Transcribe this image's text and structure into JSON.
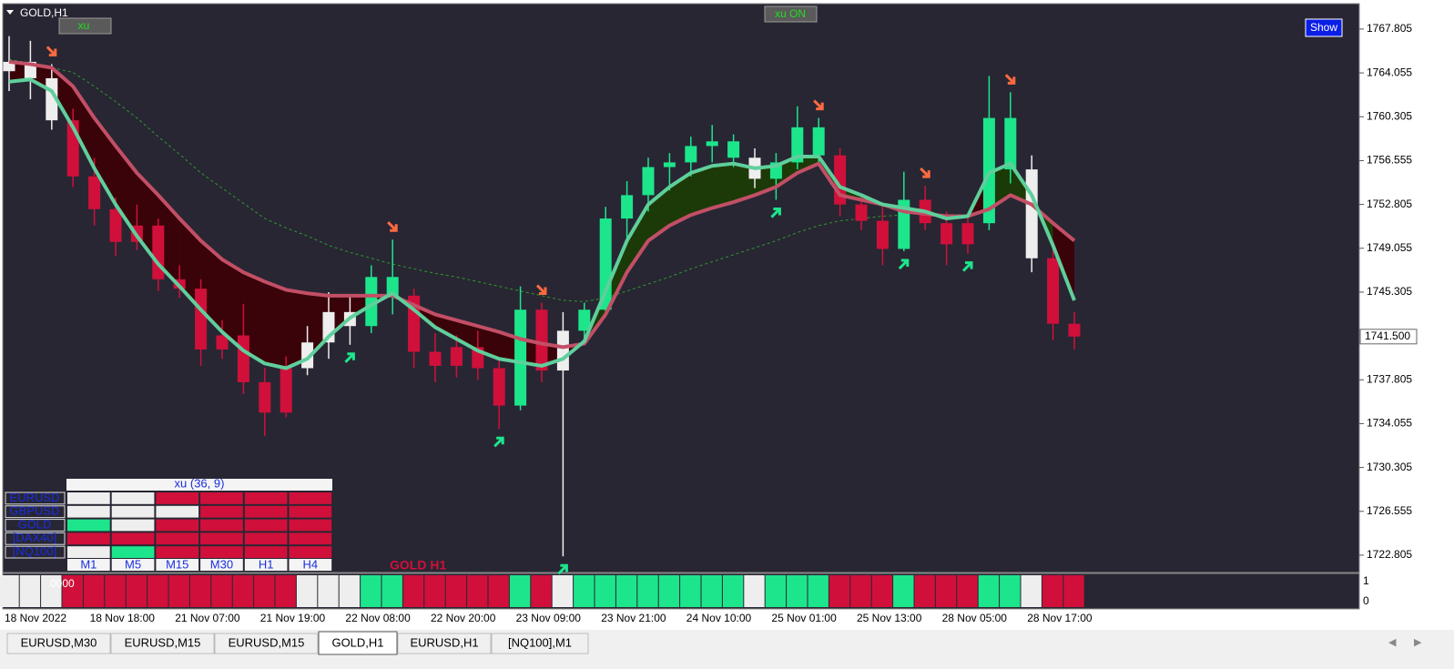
{
  "chart_data": {
    "type": "candlestick",
    "title": "GOLD,H1",
    "categories": [
      "18 Nov 2022",
      null,
      null,
      null,
      "18 Nov 18:00",
      null,
      null,
      null,
      "21 Nov 07:00",
      null,
      null,
      null,
      "21 Nov 19:00",
      null,
      null,
      null,
      "22 Nov 08:00",
      null,
      null,
      null,
      "22 Nov 20:00",
      null,
      null,
      null,
      "23 Nov 09:00",
      null,
      null,
      null,
      "23 Nov 21:00",
      null,
      null,
      null,
      "24 Nov 10:00",
      null,
      null,
      null,
      "25 Nov 01:00",
      null,
      null,
      null,
      "25 Nov 13:00",
      null,
      null,
      null,
      "28 Nov 05:00",
      null,
      null,
      null,
      "28 Nov 17:00",
      null,
      null
    ],
    "ohlc": [
      [
        1764.2,
        1767.2,
        1762.5,
        1765.0
      ],
      [
        1765.0,
        1766.8,
        1761.8,
        1763.6
      ],
      [
        1763.6,
        1764.8,
        1759.2,
        1760.0
      ],
      [
        1760.0,
        1761.0,
        1754.3,
        1755.2
      ],
      [
        1755.2,
        1756.8,
        1751.0,
        1752.4
      ],
      [
        1752.4,
        1753.4,
        1748.4,
        1749.6
      ],
      [
        1749.6,
        1752.8,
        1748.9,
        1751.0
      ],
      [
        1751.0,
        1751.6,
        1745.4,
        1746.4
      ],
      [
        1746.4,
        1747.6,
        1744.8,
        1745.6
      ],
      [
        1745.6,
        1746.4,
        1739.0,
        1740.4
      ],
      [
        1740.4,
        1742.9,
        1739.6,
        1741.6
      ],
      [
        1741.6,
        1744.3,
        1736.6,
        1737.6
      ],
      [
        1737.6,
        1738.8,
        1733.0,
        1735.0
      ],
      [
        1735.0,
        1739.8,
        1734.6,
        1738.8
      ],
      [
        1738.8,
        1742.4,
        1738.2,
        1741.0
      ],
      [
        1741.0,
        1745.3,
        1739.6,
        1743.6
      ],
      [
        1743.6,
        1745.0,
        1740.8,
        1742.4
      ],
      [
        1742.4,
        1747.6,
        1741.8,
        1746.6
      ],
      [
        1746.6,
        1749.8,
        1743.4,
        1745.0
      ],
      [
        1745.0,
        1745.6,
        1738.8,
        1740.2
      ],
      [
        1740.2,
        1741.8,
        1737.6,
        1739.0
      ],
      [
        1739.0,
        1741.6,
        1738.0,
        1740.6
      ],
      [
        1740.6,
        1742.0,
        1737.8,
        1738.8
      ],
      [
        1738.8,
        1739.6,
        1733.6,
        1735.6
      ],
      [
        1735.6,
        1745.8,
        1735.2,
        1743.8
      ],
      [
        1743.8,
        1744.4,
        1737.6,
        1738.6
      ],
      [
        1738.6,
        1743.6,
        1722.7,
        1742.0
      ],
      [
        1742.0,
        1744.4,
        1741.0,
        1743.8
      ],
      [
        1743.8,
        1752.6,
        1743.2,
        1751.6
      ],
      [
        1751.6,
        1754.8,
        1749.4,
        1753.6
      ],
      [
        1753.6,
        1756.8,
        1752.2,
        1756.0
      ],
      [
        1756.0,
        1757.2,
        1754.0,
        1756.4
      ],
      [
        1756.4,
        1758.6,
        1755.2,
        1757.8
      ],
      [
        1757.8,
        1759.6,
        1756.4,
        1758.2
      ],
      [
        1758.2,
        1758.8,
        1756.0,
        1756.8
      ],
      [
        1756.8,
        1757.6,
        1754.2,
        1755.0
      ],
      [
        1755.0,
        1757.2,
        1753.2,
        1756.4
      ],
      [
        1756.4,
        1761.2,
        1755.8,
        1759.4
      ],
      [
        1759.4,
        1760.2,
        1756.4,
        1757.0
      ],
      [
        1757.0,
        1757.6,
        1751.8,
        1752.8
      ],
      [
        1752.8,
        1753.6,
        1750.6,
        1751.4
      ],
      [
        1751.4,
        1752.8,
        1747.6,
        1749.0
      ],
      [
        1749.0,
        1755.6,
        1748.8,
        1753.2
      ],
      [
        1753.2,
        1754.4,
        1750.6,
        1751.2
      ],
      [
        1751.2,
        1752.2,
        1747.6,
        1749.4
      ],
      [
        1749.4,
        1751.8,
        1748.6,
        1751.2
      ],
      [
        1751.2,
        1763.8,
        1750.6,
        1760.2
      ],
      [
        1760.2,
        1762.4,
        1754.6,
        1755.8
      ],
      [
        1755.8,
        1757.0,
        1747.0,
        1748.2
      ],
      [
        1748.2,
        1749.6,
        1741.2,
        1742.6
      ],
      [
        1742.6,
        1743.6,
        1740.4,
        1741.5
      ]
    ],
    "states": [
      0,
      0,
      0,
      -1,
      -1,
      -1,
      -1,
      -1,
      -1,
      -1,
      -1,
      -1,
      -1,
      -1,
      0,
      0,
      0,
      1,
      1,
      -1,
      -1,
      -1,
      -1,
      -1,
      1,
      -1,
      0,
      1,
      1,
      1,
      1,
      1,
      1,
      1,
      1,
      0,
      1,
      1,
      1,
      -1,
      -1,
      -1,
      1,
      -1,
      -1,
      -1,
      1,
      1,
      0,
      -1,
      -1
    ],
    "state_colors": {
      "-1": "#d0103a",
      "0": "#eeeeee",
      "1": "#1de58c"
    },
    "series": [
      {
        "color": "#c24f66",
        "values": [
          1765.0,
          1764.8,
          1764.5,
          1762.9,
          1760.2,
          1757.8,
          1755.5,
          1753.6,
          1751.6,
          1749.7,
          1748.1,
          1747.0,
          1746.2,
          1745.5,
          1745.2,
          1745.0,
          1745.0,
          1745.0,
          1745.0,
          1744.2,
          1743.4,
          1742.9,
          1742.4,
          1741.9,
          1741.3,
          1740.9,
          1740.6,
          1740.9,
          1743.4,
          1747.0,
          1749.7,
          1751.0,
          1751.9,
          1752.5,
          1753.0,
          1753.6,
          1754.3,
          1755.5,
          1756.3,
          1753.6,
          1753.2,
          1752.8,
          1752.2,
          1752.0,
          1751.8,
          1751.8,
          1752.4,
          1753.6,
          1752.8,
          1751.2,
          1749.7
        ]
      },
      {
        "color": "#5fcf9c",
        "values": [
          1763.3,
          1763.5,
          1762.5,
          1759.4,
          1755.9,
          1752.8,
          1750.1,
          1747.7,
          1745.8,
          1743.8,
          1741.9,
          1740.3,
          1739.2,
          1738.8,
          1739.6,
          1741.5,
          1743.1,
          1744.2,
          1745.2,
          1743.8,
          1742.3,
          1741.3,
          1740.3,
          1739.6,
          1739.3,
          1739.0,
          1739.6,
          1741.1,
          1745.4,
          1749.7,
          1752.8,
          1754.3,
          1755.5,
          1756.1,
          1756.3,
          1755.9,
          1756.1,
          1756.9,
          1756.9,
          1754.3,
          1753.6,
          1752.8,
          1752.5,
          1752.2,
          1751.6,
          1751.8,
          1755.5,
          1756.3,
          1753.6,
          1749.3,
          1744.6
        ]
      },
      {
        "color": "#2e9a2e",
        "dashed": true,
        "values": [
          1765.2,
          1764.9,
          1764.5,
          1764.1,
          1762.9,
          1761.6,
          1760.2,
          1758.6,
          1757.1,
          1755.5,
          1754.2,
          1752.9,
          1751.6,
          1750.8,
          1750.1,
          1749.3,
          1748.7,
          1748.2,
          1747.7,
          1747.3,
          1746.9,
          1746.6,
          1746.2,
          1745.8,
          1745.4,
          1745.0,
          1744.6,
          1744.5,
          1744.8,
          1745.4,
          1746.0,
          1746.6,
          1747.3,
          1747.9,
          1748.5,
          1749.1,
          1749.7,
          1750.4,
          1751.0,
          1751.4,
          1751.6,
          1751.8,
          1751.9,
          null,
          null,
          null,
          null,
          null,
          null,
          null,
          null
        ]
      }
    ],
    "arrows_down": [
      2,
      18,
      25,
      38,
      43,
      47
    ],
    "arrows_up": [
      16,
      23,
      26,
      36,
      42,
      45
    ],
    "ylim": [
      1721.4,
      1769.9
    ],
    "yticks": [
      1767.805,
      1764.055,
      1760.305,
      1756.555,
      1752.805,
      1749.055,
      1745.305,
      1737.805,
      1734.055,
      1730.305,
      1726.555,
      1722.805
    ],
    "current_price": {
      "value": 1741.5,
      "label": "1741.500"
    },
    "indicator": {
      "label": "0000",
      "yticks": [
        1,
        0
      ],
      "ylim": [
        0,
        1
      ]
    }
  },
  "ui": {
    "button_xu": "xu",
    "button_xu_on": "xu ON",
    "button_show": "Show",
    "symbol_label": "GOLD H1",
    "panel": {
      "title": "xu (36, 9)",
      "rows": [
        "EURUSD",
        "GBPUSD",
        "GOLD",
        "[DAX40]",
        "[NQ100]"
      ],
      "columns": [
        "M1",
        "M5",
        "M15",
        "M30",
        "H1",
        "H4"
      ],
      "cells": [
        [
          0,
          0,
          -1,
          -1,
          -1,
          -1
        ],
        [
          0,
          0,
          0,
          -1,
          -1,
          -1
        ],
        [
          1,
          0,
          -1,
          -1,
          -1,
          -1
        ],
        [
          -1,
          -1,
          -1,
          -1,
          -1,
          -1
        ],
        [
          0,
          1,
          -1,
          -1,
          -1,
          -1
        ]
      ]
    },
    "tabs": [
      "EURUSD,M30",
      "EURUSD,M15",
      "EURUSD,M15",
      "GOLD,H1",
      "EURUSD,H1",
      "[NQ100],M1"
    ],
    "active_tab": 3
  }
}
